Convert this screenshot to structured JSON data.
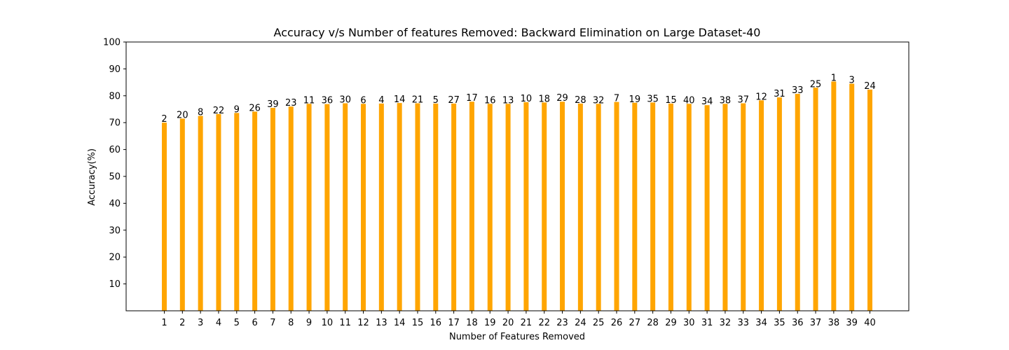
{
  "chart_data": {
    "type": "bar",
    "title": "Accuracy v/s Number of features Removed: Backward Elimination on Large Dataset-40",
    "xlabel": "Number of Features Removed",
    "ylabel": "Accuracy(%)",
    "ylim": [
      0,
      100
    ],
    "yticks": [
      10,
      20,
      30,
      40,
      50,
      60,
      70,
      80,
      90,
      100
    ],
    "bar_color": "#ffa500",
    "grid": false,
    "categories": [
      "1",
      "2",
      "3",
      "4",
      "5",
      "6",
      "7",
      "8",
      "9",
      "10",
      "11",
      "12",
      "13",
      "14",
      "15",
      "16",
      "17",
      "18",
      "19",
      "20",
      "21",
      "22",
      "23",
      "24",
      "25",
      "26",
      "27",
      "28",
      "29",
      "30",
      "31",
      "32",
      "33",
      "34",
      "35",
      "36",
      "37",
      "38",
      "39",
      "40"
    ],
    "values": [
      70.0,
      71.5,
      72.5,
      73.2,
      73.6,
      74.1,
      75.5,
      76.0,
      77.0,
      76.9,
      77.2,
      77.0,
      77.1,
      77.3,
      77.2,
      77.1,
      77.1,
      77.8,
      77.0,
      77.0,
      77.6,
      77.5,
      77.8,
      77.1,
      77.0,
      77.7,
      77.4,
      77.5,
      77.1,
      77.0,
      76.5,
      77.0,
      77.2,
      78.3,
      79.4,
      80.7,
      83.0,
      85.3,
      84.5,
      82.3
    ],
    "data_labels": [
      "2",
      "20",
      "8",
      "22",
      "9",
      "26",
      "39",
      "23",
      "11",
      "36",
      "30",
      "6",
      "4",
      "14",
      "21",
      "5",
      "27",
      "17",
      "16",
      "13",
      "10",
      "18",
      "29",
      "28",
      "32",
      "7",
      "19",
      "35",
      "15",
      "40",
      "34",
      "38",
      "37",
      "12",
      "31",
      "33",
      "25",
      "1",
      "3",
      "24"
    ]
  }
}
